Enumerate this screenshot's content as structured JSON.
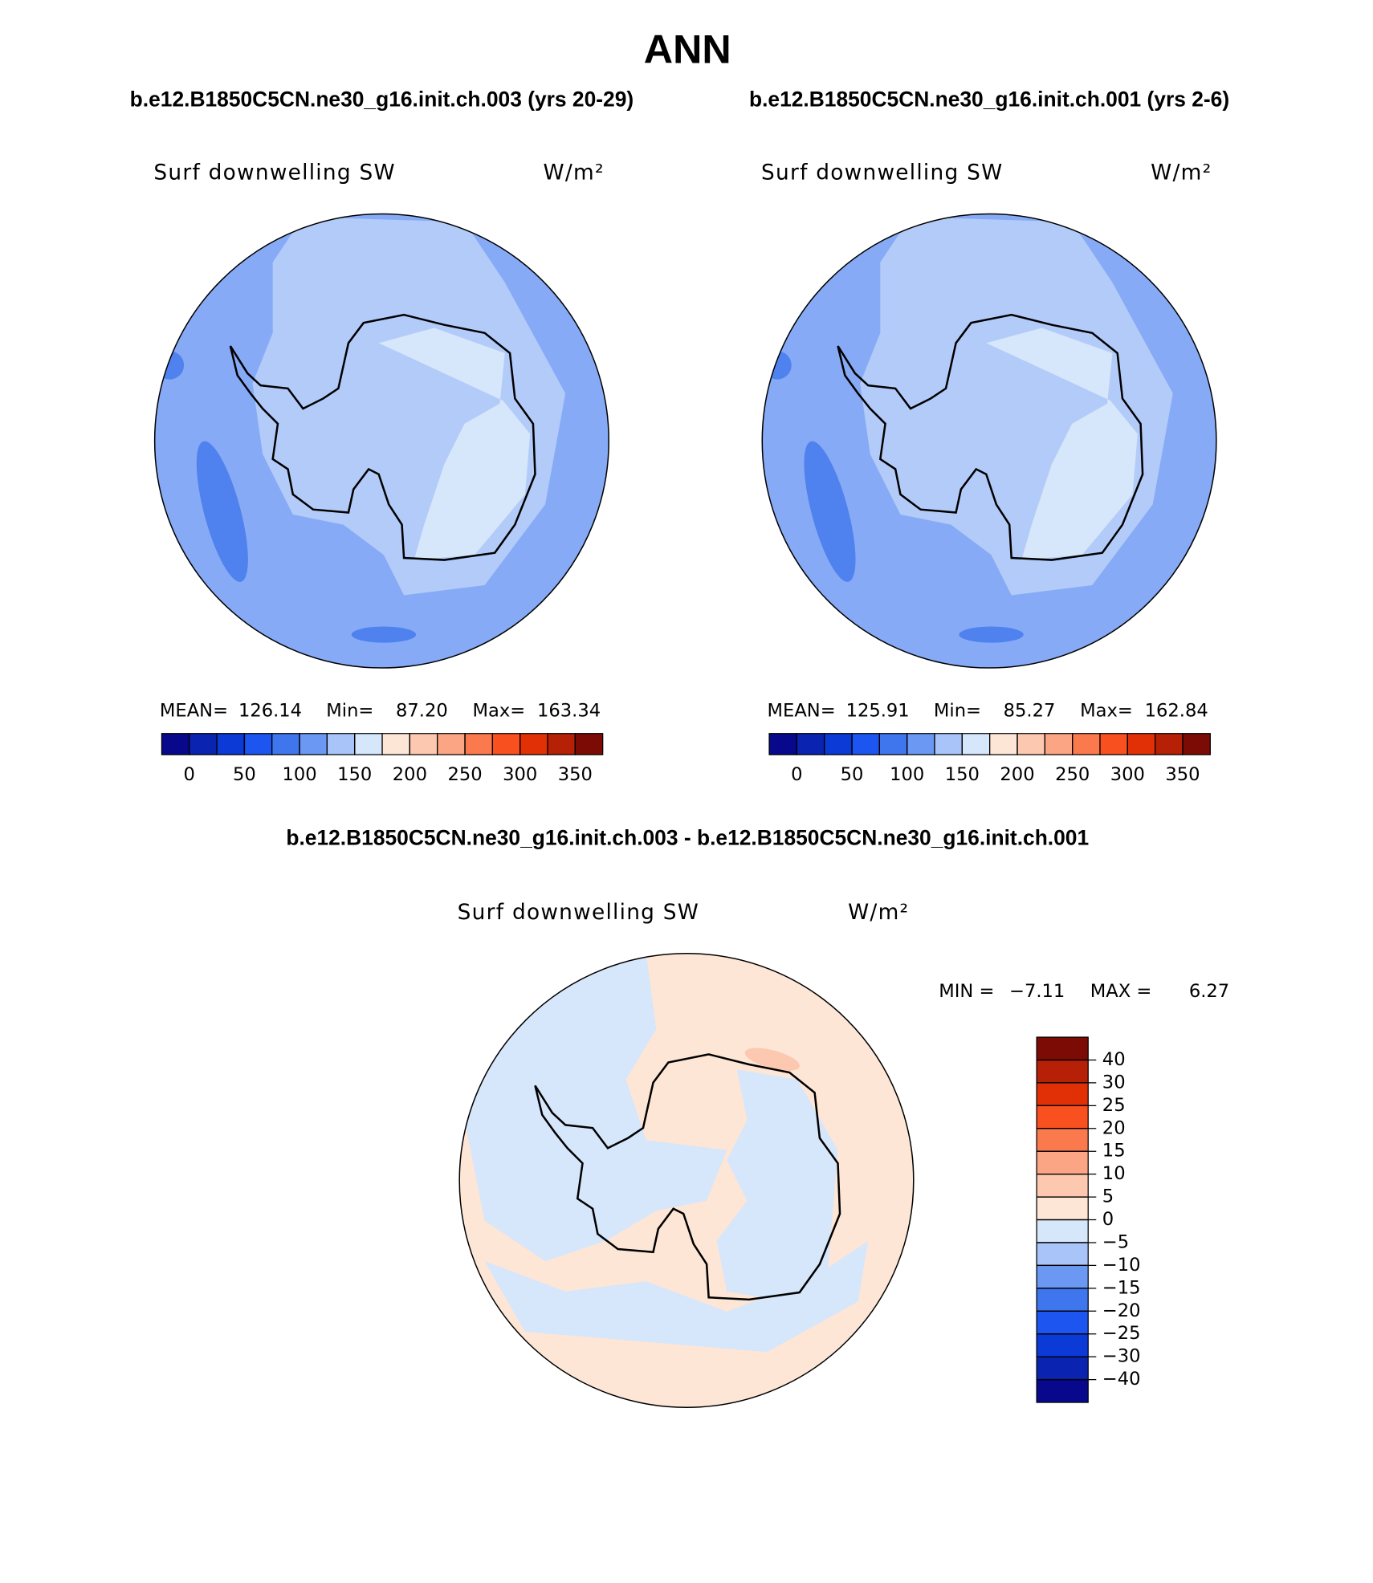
{
  "title": "ANN",
  "panels": [
    {
      "subtitle": "b.e12.B1850C5CN.ne30_g16.init.ch.003 (yrs 20-29)",
      "variable": "Surf downwelling SW",
      "units": "W/m²",
      "stats": [
        {
          "label": "MEAN=",
          "value": "126.14"
        },
        {
          "label": "Min=",
          "value": "87.20"
        },
        {
          "label": "Max=",
          "value": "163.34"
        }
      ],
      "colorbar": {
        "labels": [
          0,
          50,
          100,
          150,
          200,
          250,
          300,
          350
        ],
        "colors": [
          "#08088c",
          "#0a23b0",
          "#0b3ad6",
          "#1c55f0",
          "#3f76ee",
          "#6a98f2",
          "#a8c4f8",
          "#d6e6fb",
          "#fde6d6",
          "#fcc8b0",
          "#fca585",
          "#fb7a4d",
          "#f8501f",
          "#e23006",
          "#b52006",
          "#7d0b05"
        ]
      }
    },
    {
      "subtitle": "b.e12.B1850C5CN.ne30_g16.init.ch.001 (yrs 2-6)",
      "variable": "Surf downwelling SW",
      "units": "W/m²",
      "stats": [
        {
          "label": "MEAN=",
          "value": "125.91"
        },
        {
          "label": "Min=",
          "value": "85.27"
        },
        {
          "label": "Max=",
          "value": "162.84"
        }
      ],
      "colorbar": {
        "labels": [
          0,
          50,
          100,
          150,
          200,
          250,
          300,
          350
        ],
        "colors": [
          "#08088c",
          "#0a23b0",
          "#0b3ad6",
          "#1c55f0",
          "#3f76ee",
          "#6a98f2",
          "#a8c4f8",
          "#d6e6fb",
          "#fde6d6",
          "#fcc8b0",
          "#fca585",
          "#fb7a4d",
          "#f8501f",
          "#e23006",
          "#b52006",
          "#7d0b05"
        ]
      }
    },
    {
      "subtitle": "b.e12.B1850C5CN.ne30_g16.init.ch.003 - b.e12.B1850C5CN.ne30_g16.init.ch.001",
      "variable": "Surf downwelling SW",
      "units": "W/m²",
      "stats": [
        {
          "label": "MIN =",
          "value": "−7.11"
        },
        {
          "label": "MAX =",
          "value": "6.27"
        }
      ],
      "colorbar": {
        "labels": [
          40,
          30,
          25,
          20,
          15,
          10,
          5,
          0,
          -5,
          -10,
          -15,
          -20,
          -25,
          -30,
          -40
        ],
        "colors": [
          "#7d0b05",
          "#b52006",
          "#e23006",
          "#f8501f",
          "#fb7a4d",
          "#fca585",
          "#fcc8b0",
          "#fde6d6",
          "#d6e6fb",
          "#a8c4f8",
          "#6a98f2",
          "#3f76ee",
          "#1c55f0",
          "#0b3ad6",
          "#0a23b0",
          "#08088c"
        ]
      }
    }
  ]
}
